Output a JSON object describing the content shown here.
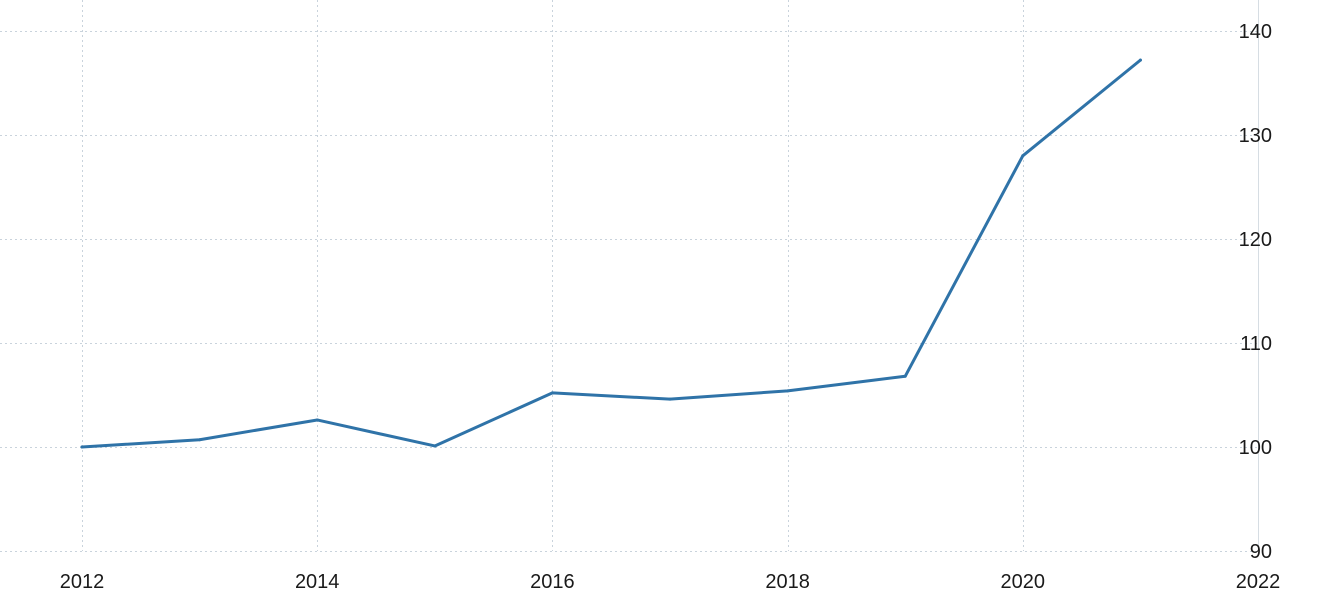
{
  "chart_data": {
    "type": "line",
    "title": "",
    "xlabel": "",
    "ylabel": "",
    "x_ticks": [
      "2012",
      "2014",
      "2016",
      "2018",
      "2020",
      "2022"
    ],
    "y_ticks": [
      "90",
      "100",
      "110",
      "120",
      "130",
      "140"
    ],
    "xlim": [
      2012,
      2022
    ],
    "ylim": [
      90,
      140
    ],
    "y_axis_position": "right",
    "grid": true,
    "legend": "none",
    "colors": {
      "series": "#2f73a8",
      "grid": "#c9d3dc",
      "text": "#1a1a1a"
    },
    "series": [
      {
        "x": [
          2012,
          2013,
          2014,
          2015,
          2016,
          2017,
          2018,
          2019,
          2020,
          2021
        ],
        "values": [
          100.0,
          100.7,
          102.6,
          100.1,
          105.2,
          104.6,
          105.4,
          106.8,
          128.0,
          137.2
        ]
      }
    ]
  }
}
